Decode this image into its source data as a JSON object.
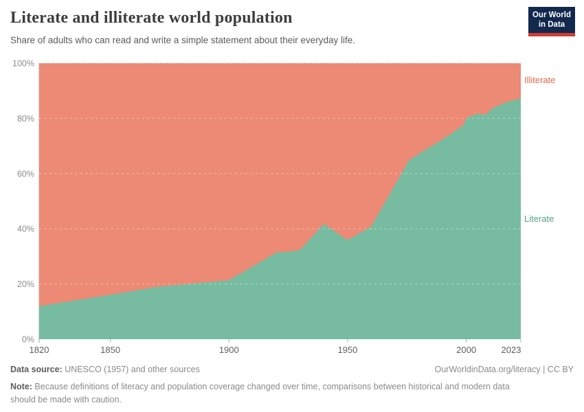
{
  "header": {
    "title": "Literate and illiterate world population",
    "subtitle": "Share of adults who can read and write a simple statement about their everyday life.",
    "logo": {
      "line1": "Our World",
      "line2": "in Data",
      "bg_color": "#12294d",
      "stripe_color": "#d13d33"
    }
  },
  "chart_data": {
    "type": "area",
    "stacked": true,
    "title": "Literate and illiterate world population",
    "unit": "%",
    "x": [
      1820,
      1850,
      1870,
      1900,
      1920,
      1925,
      1930,
      1940,
      1950,
      1960,
      1976,
      1990,
      1999,
      2000,
      2005,
      2008,
      2011,
      2016,
      2020,
      2023
    ],
    "series": [
      {
        "name": "Literate",
        "color": "#77bca0",
        "label_color": "#53a188",
        "values": [
          12,
          16.1,
          19,
          21.4,
          31.4,
          31.7,
          32.4,
          41.8,
          35.9,
          40.9,
          65,
          72.4,
          77.6,
          80.1,
          81.8,
          81.3,
          83.6,
          85.6,
          86.6,
          87.3
        ]
      },
      {
        "name": "Illiterate",
        "color": "#ec8a75",
        "label_color": "#e0684f",
        "values": [
          88,
          83.9,
          81,
          78.6,
          68.6,
          68.3,
          67.6,
          58.2,
          64.1,
          59.1,
          35,
          27.6,
          22.4,
          19.9,
          18.2,
          18.7,
          16.4,
          14.4,
          13.4,
          12.7
        ]
      }
    ],
    "xlim": [
      1820,
      2023
    ],
    "ylim": [
      0,
      100
    ],
    "x_ticks": [
      1820,
      1850,
      1900,
      1950,
      2000,
      2023
    ],
    "y_ticks": [
      0,
      20,
      40,
      60,
      80,
      100
    ],
    "y_tick_suffix": "%",
    "grid": "horizontal-dashed",
    "legend_position": "right",
    "axis_label_color_x": "#5f5f5f",
    "axis_label_color_y": "#8c8c8c"
  },
  "footer": {
    "data_source_label": "Data source:",
    "data_source_text": " UNESCO (1957) and other sources",
    "link": "OurWorldinData.org/literacy | CC BY",
    "note_label": "Note:",
    "note_text": " Because definitions of literacy and population coverage changed over time, comparisons between historical and modern data should be made with caution."
  }
}
